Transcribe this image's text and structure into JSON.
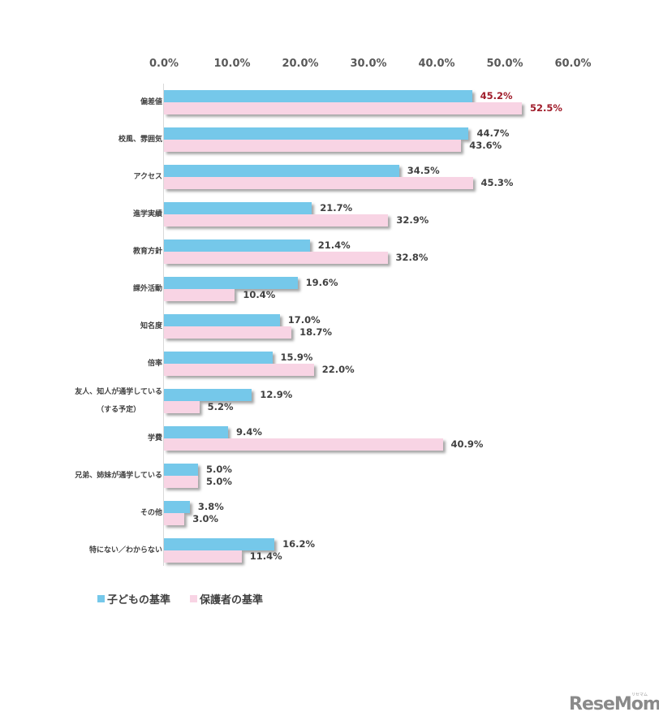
{
  "chart_data": {
    "type": "bar",
    "orientation": "horizontal",
    "title": "",
    "xlabel": "",
    "ylabel": "",
    "xlim": [
      0,
      60
    ],
    "x_ticks": [
      "0.0%",
      "10.0%",
      "20.0%",
      "30.0%",
      "40.0%",
      "50.0%",
      "60.0%"
    ],
    "grid": false,
    "legend_position": "bottom-left",
    "categories": [
      "偏差値",
      "校風、雰囲気",
      "アクセス",
      "進学実績",
      "教育方針",
      "課外活動",
      "知名度",
      "倍率",
      "友人、知人が通学している（する予定）",
      "学費",
      "兄弟、姉妹が通学している",
      "その他",
      "特にない／わからない"
    ],
    "series": [
      {
        "name": "子どもの基準",
        "color": "#75c8ea",
        "values": [
          45.2,
          44.7,
          34.5,
          21.7,
          21.4,
          19.6,
          17.0,
          15.9,
          12.9,
          9.4,
          5.0,
          3.8,
          16.2
        ]
      },
      {
        "name": "保護者の基準",
        "color": "#f8d4e4",
        "values": [
          52.5,
          43.6,
          45.3,
          32.9,
          32.8,
          10.4,
          18.7,
          22.0,
          5.2,
          40.9,
          5.0,
          3.0,
          11.4
        ]
      }
    ],
    "highlighted_labels": {
      "category_index": 0,
      "color": "#a01c2a"
    }
  },
  "display": {
    "category_lines": [
      [
        "偏差値"
      ],
      [
        "校風、雰囲気"
      ],
      [
        "アクセス"
      ],
      [
        "進学実績"
      ],
      [
        "教育方針"
      ],
      [
        "課外活動"
      ],
      [
        "知名度"
      ],
      [
        "倍率"
      ],
      [
        "友人、知人が通学している",
        "（する予定）"
      ],
      [
        "学費"
      ],
      [
        "兄弟、姉妹が通学している"
      ],
      [
        "その他"
      ],
      [
        "特にない／わからない"
      ]
    ],
    "child_labels": [
      "45.2%",
      "44.7%",
      "34.5%",
      "21.7%",
      "21.4%",
      "19.6%",
      "17.0%",
      "15.9%",
      "12.9%",
      "9.4%",
      "5.0%",
      "3.8%",
      "16.2%"
    ],
    "parent_labels": [
      "52.5%",
      "43.6%",
      "45.3%",
      "32.9%",
      "32.8%",
      "10.4%",
      "18.7%",
      "22.0%",
      "5.2%",
      "40.9%",
      "5.0%",
      "3.0%",
      "11.4%"
    ]
  },
  "legend": {
    "child_label": "子どもの基準",
    "parent_label": "保護者の基準",
    "child_color": "#75c8ea",
    "parent_color": "#f8d4e4"
  },
  "watermark": {
    "logo_text": "ReseMom",
    "logo_sub": "リセマム"
  }
}
